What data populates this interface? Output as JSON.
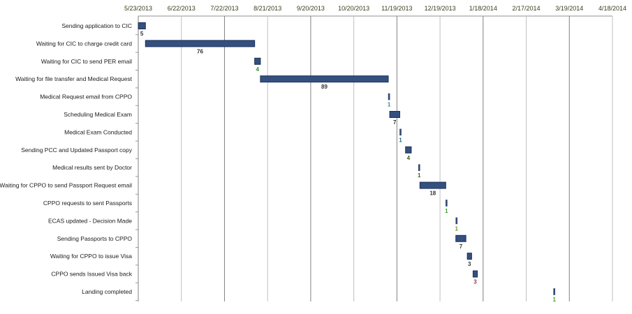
{
  "chart_data": {
    "type": "gantt",
    "title": "",
    "x_axis": {
      "start": "5/23/2013",
      "step_days": 30,
      "tick_labels": [
        "5/23/2013",
        "6/22/2013",
        "7/22/2013",
        "8/21/2013",
        "9/20/2013",
        "10/20/2013",
        "11/19/2013",
        "12/19/2013",
        "1/18/2014",
        "2/17/2014",
        "3/19/2014",
        "4/18/2014"
      ],
      "range_days": [
        0,
        330
      ]
    },
    "grid": true,
    "bar_color": "#34507e",
    "tasks": [
      {
        "name": "Sending application to CIC",
        "start_day": 0,
        "duration": 5,
        "label": "5",
        "label_color": "#333"
      },
      {
        "name": "Waiting for CIC to charge credit card",
        "start_day": 5,
        "duration": 76,
        "label": "76",
        "label_color": "#333"
      },
      {
        "name": "Waiting for CIC to send PER email",
        "start_day": 81,
        "duration": 4,
        "label": "4",
        "label_color": "#2a8a3a"
      },
      {
        "name": "Waiting for file transfer and Medical Request",
        "start_day": 85,
        "duration": 89,
        "label": "89",
        "label_color": "#333"
      },
      {
        "name": "Medical Request email from CPPO",
        "start_day": 174,
        "duration": 1,
        "label": "1",
        "label_color": "#2a8a8a"
      },
      {
        "name": "Scheduling Medical Exam",
        "start_day": 175,
        "duration": 7,
        "label": "7",
        "label_color": "#333"
      },
      {
        "name": "Medical Exam Conducted",
        "start_day": 182,
        "duration": 1,
        "label": "1",
        "label_color": "#1a6a6a"
      },
      {
        "name": "Sending PCC and  Updated  Passport copy",
        "start_day": 186,
        "duration": 4,
        "label": "4",
        "label_color": "#3a5a1a"
      },
      {
        "name": "Medical results sent by Doctor",
        "start_day": 195,
        "duration": 1,
        "label": "1",
        "label_color": "#4a5a1a"
      },
      {
        "name": "Waiting for CPPO to send Passport Request email",
        "start_day": 196,
        "duration": 18,
        "label": "18",
        "label_color": "#333"
      },
      {
        "name": "CPPO requests to sent Passports",
        "start_day": 214,
        "duration": 1,
        "label": "1",
        "label_color": "#3aa020"
      },
      {
        "name": "ECAS updated - Decision Made",
        "start_day": 221,
        "duration": 1,
        "label": "1",
        "label_color": "#6a9a10"
      },
      {
        "name": "Sending Passports to CPPO",
        "start_day": 221,
        "duration": 7,
        "label": "7",
        "label_color": "#333"
      },
      {
        "name": "Waiting for CPPO to issue Visa",
        "start_day": 229,
        "duration": 3,
        "label": "3",
        "label_color": "#333"
      },
      {
        "name": "CPPO sends Issued Visa back",
        "start_day": 233,
        "duration": 3,
        "label": "3",
        "label_color": "#8a3a4a"
      },
      {
        "name": "Landing completed",
        "start_day": 289,
        "duration": 1,
        "label": "1",
        "label_color": "#4aa020"
      }
    ]
  }
}
